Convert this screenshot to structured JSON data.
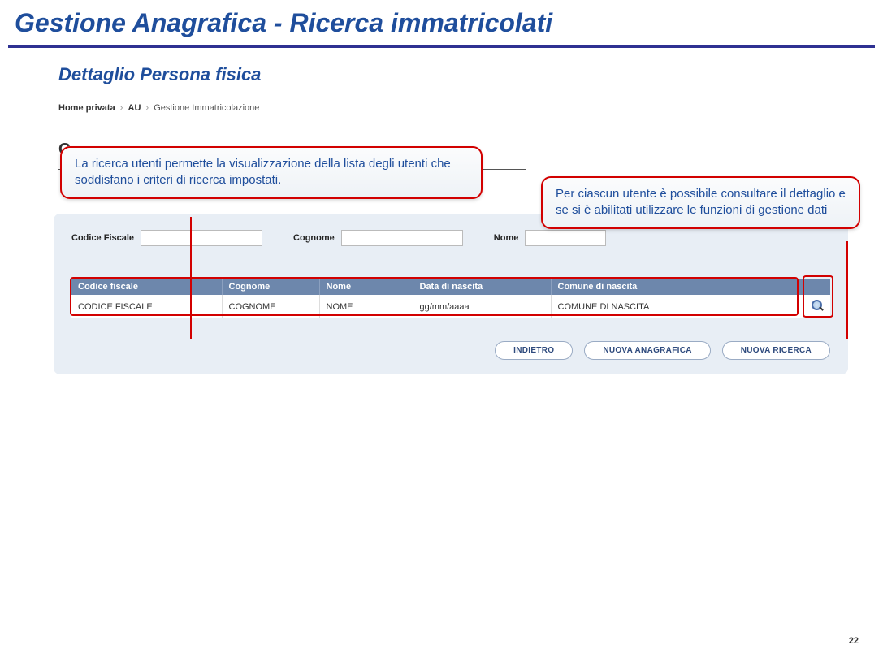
{
  "slide": {
    "title": "Gestione Anagrafica - Ricerca immatricolati",
    "subtitle": "Dettaglio Persona fisica",
    "page_number": "22"
  },
  "colors": {
    "primary_brand": "#1f4e9c",
    "title_underline": "#2e3192",
    "callout_border": "#d20000",
    "table_header_bg": "#6d87ac",
    "panel_bg": "#e8eef5",
    "button_text": "#2e4a7d"
  },
  "breadcrumb": {
    "item1": "Home privata",
    "sep1": "›",
    "item2": "AU",
    "sep2": "›",
    "item3": "Gestione Immatricolazione"
  },
  "hidden_section_letter": "G",
  "callouts": {
    "left": "La ricerca utenti permette la visualizzazione della lista degli utenti che soddisfano i criteri di ricerca impostati.",
    "right": "Per ciascun utente è possibile consultare il dettaglio e se si è abilitati utilizzare le funzioni di gestione dati"
  },
  "search_form": {
    "cf_label": "Codice Fiscale",
    "cf_value": "",
    "cognome_label": "Cognome",
    "cognome_value": "",
    "nome_label": "Nome",
    "nome_value": ""
  },
  "results": {
    "headers": {
      "cf": "Codice fiscale",
      "cognome": "Cognome",
      "nome": "Nome",
      "data": "Data di nascita",
      "comune": "Comune di nascita",
      "action": ""
    },
    "row": {
      "cf": "CODICE FISCALE",
      "cognome": "COGNOME",
      "nome": "NOME",
      "data": "gg/mm/aaaa",
      "comune": "COMUNE DI NASCITA"
    }
  },
  "buttons": {
    "indietro": "INDIETRO",
    "nuova_anagrafica": "NUOVA ANAGRAFICA",
    "nuova_ricerca": "NUOVA RICERCA"
  }
}
